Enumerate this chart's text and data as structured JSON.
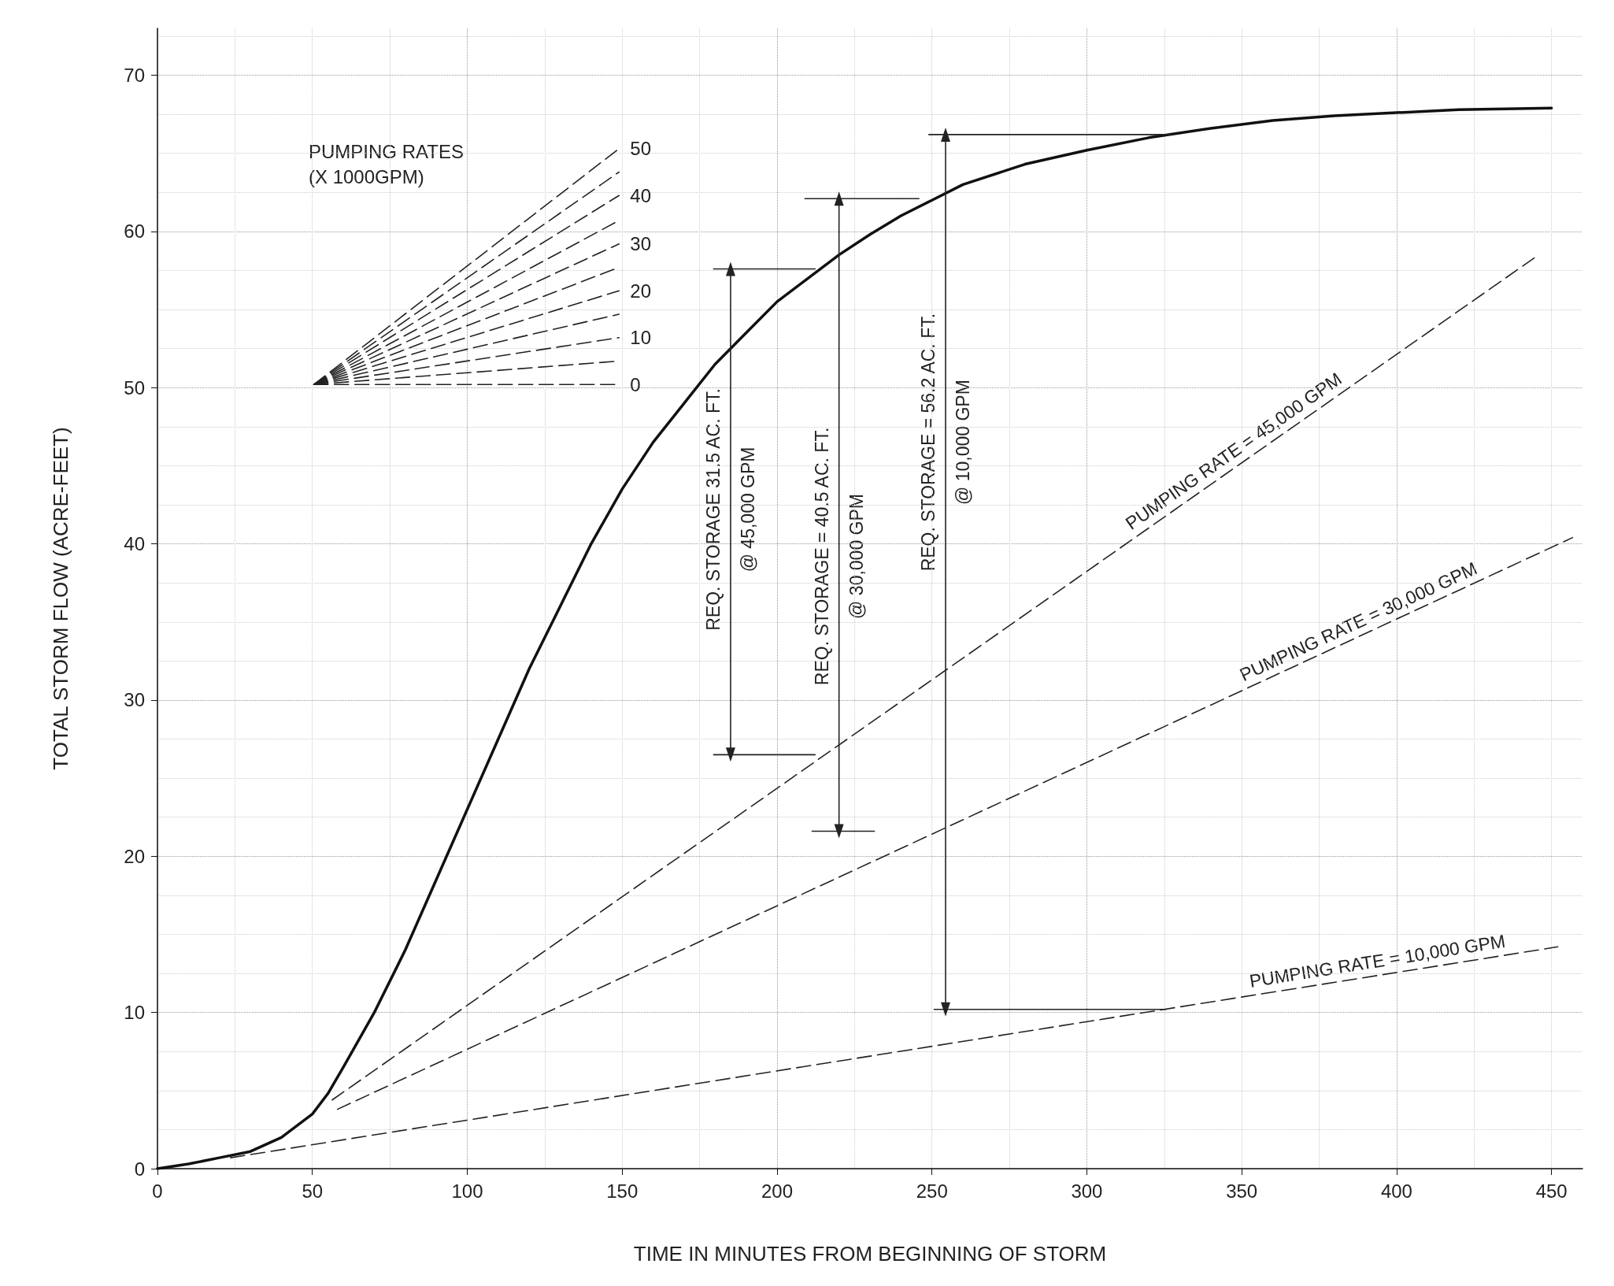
{
  "chart_data": {
    "type": "line",
    "xlabel": "TIME IN MINUTES FROM BEGINNING OF STORM",
    "ylabel": "TOTAL STORM FLOW (ACRE-FEET)",
    "legend_title": "PUMPING RATES\n(X 1000GPM)",
    "xlim": [
      0,
      460
    ],
    "xticks": [
      0,
      50,
      100,
      150,
      200,
      250,
      300,
      350,
      400,
      450
    ],
    "ylim": [
      0,
      73
    ],
    "yticks": [
      0,
      10,
      20,
      30,
      40,
      50,
      60,
      70
    ],
    "grid": true,
    "series": [
      {
        "color": "#111111",
        "line_style": "solid",
        "x": [
          0,
          10,
          20,
          30,
          40,
          50,
          55,
          60,
          70,
          80,
          90,
          100,
          110,
          120,
          130,
          140,
          150,
          160,
          170,
          180,
          190,
          200,
          210,
          220,
          230,
          240,
          250,
          260,
          280,
          300,
          320,
          340,
          360,
          380,
          400,
          420,
          450
        ],
        "values": [
          0,
          0.3,
          0.7,
          1.1,
          2.0,
          3.5,
          4.8,
          6.5,
          10,
          14,
          18.5,
          23,
          27.5,
          32,
          36,
          40,
          43.5,
          46.5,
          49,
          51.5,
          53.5,
          55.5,
          57,
          58.5,
          59.8,
          61,
          62,
          63,
          64.3,
          65.2,
          66,
          66.6,
          67.1,
          67.4,
          67.6,
          67.8,
          67.9
        ]
      },
      {
        "color": "#222222",
        "line_style": "dashed",
        "x": [
          56.4,
          444.4
        ],
        "values": [
          4.4,
          58.3
        ]
      },
      {
        "color": "#222222",
        "line_style": "dashed",
        "x": [
          58.1,
          456.8
        ],
        "values": [
          3.8,
          40.4
        ]
      },
      {
        "color": "#222222",
        "line_style": "dashed",
        "x": [
          23.6,
          452
        ],
        "values": [
          0.7,
          14.2
        ]
      },
      {
        "color": "#222222",
        "line_style": "solid",
        "marker": "triangle",
        "x": [
          185,
          185
        ],
        "values": [
          57.6,
          26.5
        ]
      },
      {
        "color": "#222222",
        "line_style": "solid",
        "x": [
          179.5,
          212.3
        ],
        "values": [
          57.6,
          57.6
        ]
      },
      {
        "color": "#222222",
        "line_style": "solid",
        "x": [
          179.5,
          212.3
        ],
        "values": [
          26.5,
          26.5
        ]
      },
      {
        "color": "#222222",
        "line_style": "solid",
        "marker": "triangle",
        "x": [
          220,
          220
        ],
        "values": [
          62.1,
          21.6
        ]
      },
      {
        "color": "#222222",
        "line_style": "solid",
        "x": [
          209,
          245.8
        ],
        "values": [
          62.1,
          62.1
        ]
      },
      {
        "color": "#222222",
        "line_style": "solid",
        "x": [
          211.3,
          231.4
        ],
        "values": [
          21.6,
          21.6
        ]
      },
      {
        "color": "#222222",
        "line_style": "solid",
        "marker": "triangle",
        "x": [
          254.4,
          254.4
        ],
        "values": [
          66.2,
          10.2
        ]
      },
      {
        "color": "#222222",
        "line_style": "solid",
        "x": [
          249,
          327
        ],
        "values": [
          66.2,
          66.2
        ]
      },
      {
        "color": "#222222",
        "line_style": "solid",
        "x": [
          250.7,
          325.6
        ],
        "values": [
          10.2,
          10.2
        ]
      },
      {
        "name": "0",
        "color": "#222222",
        "line_style": "dashed",
        "x": [
          50.5,
          149
        ],
        "values": [
          50.2,
          50.2
        ]
      },
      {
        "color": "#222222",
        "line_style": "dashed",
        "x": [
          50.5,
          149
        ],
        "values": [
          50.2,
          51.7
        ]
      },
      {
        "name": "10",
        "color": "#222222",
        "line_style": "dashed",
        "x": [
          50.5,
          149
        ],
        "values": [
          50.2,
          53.2
        ]
      },
      {
        "color": "#222222",
        "line_style": "dashed",
        "x": [
          50.5,
          149
        ],
        "values": [
          50.2,
          54.7
        ]
      },
      {
        "name": "20",
        "color": "#222222",
        "line_style": "dashed",
        "x": [
          50.5,
          149
        ],
        "values": [
          50.2,
          56.2
        ]
      },
      {
        "color": "#222222",
        "line_style": "dashed",
        "x": [
          50.5,
          149
        ],
        "values": [
          50.2,
          57.7
        ]
      },
      {
        "name": "30",
        "color": "#222222",
        "line_style": "dashed",
        "x": [
          50.5,
          149
        ],
        "values": [
          50.2,
          59.2
        ]
      },
      {
        "color": "#222222",
        "line_style": "dashed",
        "x": [
          50.5,
          149
        ],
        "values": [
          50.2,
          60.7
        ]
      },
      {
        "name": "40",
        "color": "#222222",
        "line_style": "dashed",
        "x": [
          50.5,
          149
        ],
        "values": [
          50.2,
          62.3
        ]
      },
      {
        "color": "#222222",
        "line_style": "dashed",
        "x": [
          50.5,
          149
        ],
        "values": [
          50.2,
          63.8
        ]
      },
      {
        "name": "50",
        "color": "#222222",
        "line_style": "dashed",
        "x": [
          50.5,
          149
        ],
        "values": [
          50.2,
          65.3
        ]
      }
    ],
    "annotations": [
      {
        "text": "REQ. STORAGE 31.5 AC. FT.\n@ 45,000 GPM",
        "x": 185,
        "y": 42.2
      },
      {
        "text": "REQ. STORAGE = 40.5 AC. FT.\n@ 30,000 GPM",
        "x": 220,
        "y": 39.2
      },
      {
        "text": "REQ. STORAGE = 56.2 AC. FT.\n@ 10,000 GPM",
        "x": 254.4,
        "y": 46.5
      },
      {
        "text": "PUMPING RATE = 45,000 GPM",
        "x": 350,
        "y": 45.2
      },
      {
        "text": "PUMPING RATE = 30,000 GPM",
        "x": 389.6,
        "y": 34.2
      },
      {
        "text": "PUMPING RATE = 10,000 GPM",
        "x": 394.5,
        "y": 12.4
      }
    ]
  }
}
